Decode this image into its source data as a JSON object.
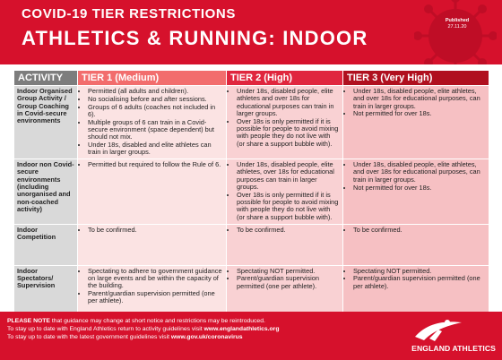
{
  "header": {
    "title_line1": "COVID-19 TIER RESTRICTIONS",
    "title_line2": "ATHLETICS & RUNNING: INDOOR",
    "published_label": "Published",
    "published_date": "27.11.20"
  },
  "table": {
    "headers": [
      "ACTIVITY",
      "TIER 1 (Medium)",
      "TIER 2 (High)",
      "TIER 3 (Very High)"
    ],
    "rows": [
      {
        "activity": "Indoor Organised Group Activity / Group Coaching in Covid-secure environments",
        "tier1": [
          "Permitted (all adults and children).",
          "No socialising before and after sessions.",
          "Groups of 6 adults (coaches not included in 6).",
          "Multiple groups of 6 can train in a Covid-secure environment (space dependent) but should not mix.",
          "Under 18s, disabled and elite athletes can train in larger groups."
        ],
        "tier2": [
          "Under 18s, disabled people, elite athletes and over 18s for educational purposes can train in larger groups.",
          "Over 18s is only permitted if it is possible for people to avoid mixing with people they do not live with (or share a support bubble with)."
        ],
        "tier3": [
          "Under 18s, disabled people, elite athletes, and over 18s for educational purposes, can train in larger groups.",
          "Not permitted for over 18s."
        ]
      },
      {
        "activity": "Indoor non Covid-secure environments (including unorganised and non-coached activity)",
        "tier1": [
          "Permitted but required to follow the Rule of 6."
        ],
        "tier2": [
          "Under 18s, disabled people, elite athletes, over 18s for educational purposes can train in larger groups.",
          "Over 18s is only permitted if it is possible for people to avoid mixing with people they do not live with (or share a support bubble with)."
        ],
        "tier3": [
          "Under 18s, disabled people, elite athletes, and over 18s for educational purposes, can train in larger groups.",
          "Not permitted for over 18s."
        ]
      },
      {
        "activity": "Indoor Competition",
        "tier1": [
          "To be confirmed."
        ],
        "tier2": [
          "To be confirmed."
        ],
        "tier3": [
          "To be confirmed."
        ]
      },
      {
        "activity": "Indoor Spectators/ Supervision",
        "tier1": [
          "Spectating to adhere to government guidance on large events and be within the capacity of the building.",
          "Parent/guardian supervision permitted (one per athlete)."
        ],
        "tier2": [
          "Spectating NOT permitted.",
          "Parent/guardian supervision permitted (one per athlete)."
        ],
        "tier3": [
          "Spectating NOT permitted.",
          "Parent/guardian supervision permitted (one per athlete)."
        ]
      }
    ]
  },
  "footer": {
    "note_bold": "PLEASE NOTE",
    "note_rest": " that guidance may change at short notice and restrictions may be reintroduced.",
    "line2_text": "To stay up to date with England Athletics return to activity guidelines visit ",
    "line2_link": "www.englandathletics.org",
    "line3_text": "To stay up to date with the latest government guidelines visit ",
    "line3_link": "www.gov.uk/coronavirus",
    "logo_text": "ENGLAND ATHLETICS"
  },
  "colors": {
    "brand_red": "#d6112c",
    "tier1": "#f26d6d",
    "tier2": "#e0263e",
    "tier3": "#b0101f",
    "activity_header": "#7d7d7d"
  },
  "icons": [
    "coronavirus-icon",
    "england-athletics-logo"
  ]
}
